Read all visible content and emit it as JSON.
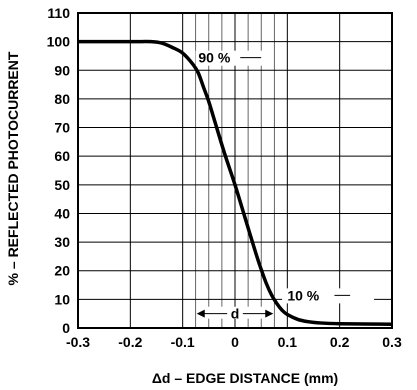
{
  "chart_data": {
    "type": "line",
    "xlabel": "Δd – EDGE DISTANCE (mm)",
    "ylabel": "% – REFLECTED PHOTOCURRENT",
    "xlim": [
      -0.3,
      0.3
    ],
    "ylim": [
      0,
      110
    ],
    "xticks": [
      -0.3,
      -0.2,
      -0.1,
      0,
      0.1,
      0.2,
      0.3
    ],
    "xtick_labels": [
      "-0.3",
      "-0.2",
      "-0.1",
      "0",
      "0.1",
      "0.2",
      "0.3"
    ],
    "yticks": [
      0,
      10,
      20,
      30,
      40,
      50,
      60,
      70,
      80,
      90,
      100,
      110
    ],
    "ytick_labels": [
      "0",
      "10",
      "20",
      "30",
      "40",
      "50",
      "60",
      "70",
      "80",
      "90",
      "100",
      "110"
    ],
    "grid": true,
    "series": [
      {
        "x": [
          -0.3,
          -0.2,
          -0.16,
          -0.14,
          -0.12,
          -0.1,
          -0.08,
          -0.07,
          -0.06,
          -0.05,
          -0.04,
          -0.02,
          0,
          0.02,
          0.04,
          0.05,
          0.06,
          0.07,
          0.08,
          0.09,
          0.1,
          0.12,
          0.14,
          0.16,
          0.2,
          0.3
        ],
        "y": [
          100,
          100,
          100,
          99.5,
          98,
          96,
          92,
          89,
          84,
          79,
          73,
          61,
          50,
          38,
          26,
          20.5,
          15.5,
          11.5,
          8.5,
          6.2,
          4.7,
          3,
          2.2,
          1.8,
          1.5,
          1.3
        ]
      }
    ],
    "annotations": {
      "label_90": "90 %",
      "label_10": "10 %",
      "label_d": "d"
    }
  }
}
